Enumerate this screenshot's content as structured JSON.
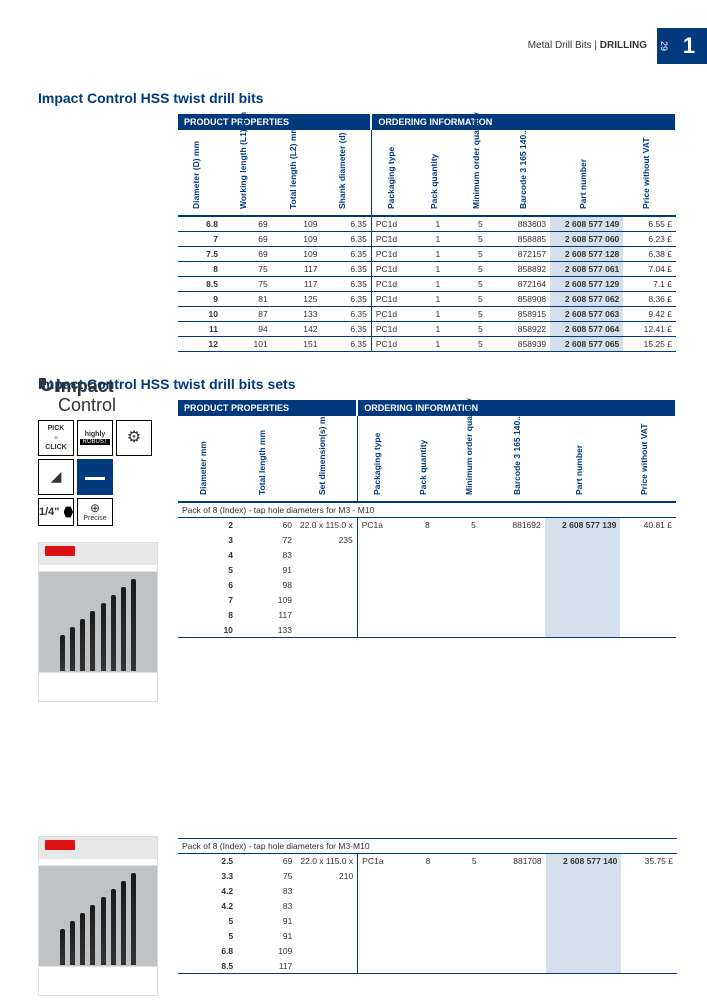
{
  "chapter_number": "1",
  "page_number": "29",
  "breadcrumb_left": "Metal Drill Bits",
  "breadcrumb_right": "DRILLING",
  "section1_title": "Impact Control HSS twist drill bits",
  "section2_title": "Impact Control HSS twist drill bits sets",
  "group_headers": {
    "properties": "PRODUCT PROPERTIES",
    "ordering": "ORDERING INFORMATION"
  },
  "columns1": [
    "Diameter (D) mm",
    "Working length (L1) mm",
    "Total length (L2) mm",
    "Shank diameter (d) mm",
    "Packaging type",
    "Pack quantity",
    "Minimum order quantity",
    "Barcode 3 165 140...",
    "Part number",
    "Price without VAT"
  ],
  "rows1": [
    {
      "d": "6.8",
      "wl": "69",
      "tl": "109",
      "sd": "6.35",
      "pt": "PC1d",
      "pq": "1",
      "mo": "5",
      "bc": "883603",
      "pn": "2 608 577 149",
      "pr": "6.55 £"
    },
    {
      "d": "7",
      "wl": "69",
      "tl": "109",
      "sd": "6.35",
      "pt": "PC1d",
      "pq": "1",
      "mo": "5",
      "bc": "858885",
      "pn": "2 608 577 060",
      "pr": "6.23 £"
    },
    {
      "d": "7.5",
      "wl": "69",
      "tl": "109",
      "sd": "6.35",
      "pt": "PC1d",
      "pq": "1",
      "mo": "5",
      "bc": "872157",
      "pn": "2 608 577 128",
      "pr": "6.38 £"
    },
    {
      "d": "8",
      "wl": "75",
      "tl": "117",
      "sd": "6.35",
      "pt": "PC1d",
      "pq": "1",
      "mo": "5",
      "bc": "858892",
      "pn": "2 608 577 061",
      "pr": "7.04 £"
    },
    {
      "d": "8.5",
      "wl": "75",
      "tl": "117",
      "sd": "6.35",
      "pt": "PC1d",
      "pq": "1",
      "mo": "5",
      "bc": "872164",
      "pn": "2 608 577 129",
      "pr": "7.1 £"
    },
    {
      "d": "9",
      "wl": "81",
      "tl": "125",
      "sd": "6.35",
      "pt": "PC1d",
      "pq": "1",
      "mo": "5",
      "bc": "858908",
      "pn": "2 608 577 062",
      "pr": "8.36 £"
    },
    {
      "d": "10",
      "wl": "87",
      "tl": "133",
      "sd": "6.35",
      "pt": "PC1d",
      "pq": "1",
      "mo": "5",
      "bc": "858915",
      "pn": "2 608 577 063",
      "pr": "9.42 £"
    },
    {
      "d": "11",
      "wl": "94",
      "tl": "142",
      "sd": "6.35",
      "pt": "PC1d",
      "pq": "1",
      "mo": "5",
      "bc": "858922",
      "pn": "2 608 577 064",
      "pr": "12.41 £"
    },
    {
      "d": "12",
      "wl": "101",
      "tl": "151",
      "sd": "6.35",
      "pt": "PC1d",
      "pq": "1",
      "mo": "5",
      "bc": "858939",
      "pn": "2 608 577 065",
      "pr": "15.25 £"
    }
  ],
  "columns2": [
    "Diameter mm",
    "Total length mm",
    "Set dimension(s) mm",
    "Packaging type",
    "Pack quantity",
    "Minimum order quantity",
    "Barcode 3 165 140...",
    "Part number",
    "Price without VAT"
  ],
  "set1_label": "Pack of 8 (Index) -  tap hole diameters for M3 - M10",
  "set1_order": {
    "dim": "22.0 x 115.0 x 235",
    "pt": "PC1a",
    "pq": "8",
    "mo": "5",
    "bc": "881692",
    "pn": "2 608 577 139",
    "pr": "40.81 £"
  },
  "set1_rows": [
    {
      "d": "2",
      "tl": "60"
    },
    {
      "d": "3",
      "tl": "72"
    },
    {
      "d": "4",
      "tl": "83"
    },
    {
      "d": "5",
      "tl": "91"
    },
    {
      "d": "6",
      "tl": "98"
    },
    {
      "d": "7",
      "tl": "109"
    },
    {
      "d": "8",
      "tl": "117"
    },
    {
      "d": "10",
      "tl": "133"
    }
  ],
  "set2_label": "Pack of 8 (Index) - tap hole diameters for M3-M10",
  "set2_order": {
    "dim": "22.0 x 115.0 x 210",
    "pt": "PC1a",
    "pq": "8",
    "mo": "5",
    "bc": "881708",
    "pn": "2 608 577 140",
    "pr": "35.75 £"
  },
  "set2_rows": [
    {
      "d": "2.5",
      "tl": "69"
    },
    {
      "d": "3.3",
      "tl": "75"
    },
    {
      "d": "4.2",
      "tl": "83"
    },
    {
      "d": "4.2",
      "tl": "83"
    },
    {
      "d": "5",
      "tl": "91"
    },
    {
      "d": "5",
      "tl": "91"
    },
    {
      "d": "6.8",
      "tl": "109"
    },
    {
      "d": "8.5",
      "tl": "117"
    }
  ],
  "logo": {
    "line1": "Impact",
    "line2": "Control"
  },
  "badges": {
    "pick": "PICK",
    "click": "CLICK",
    "highly": "highly",
    "robust": "ROBUST",
    "qtr": "1/4\"",
    "precise": "Precise"
  },
  "colors": {
    "primary": "#003a7d",
    "highlight": "#d6e0ed",
    "red": "#d11"
  },
  "bit_heights": [
    36,
    44,
    52,
    60,
    68,
    76,
    84,
    92
  ]
}
